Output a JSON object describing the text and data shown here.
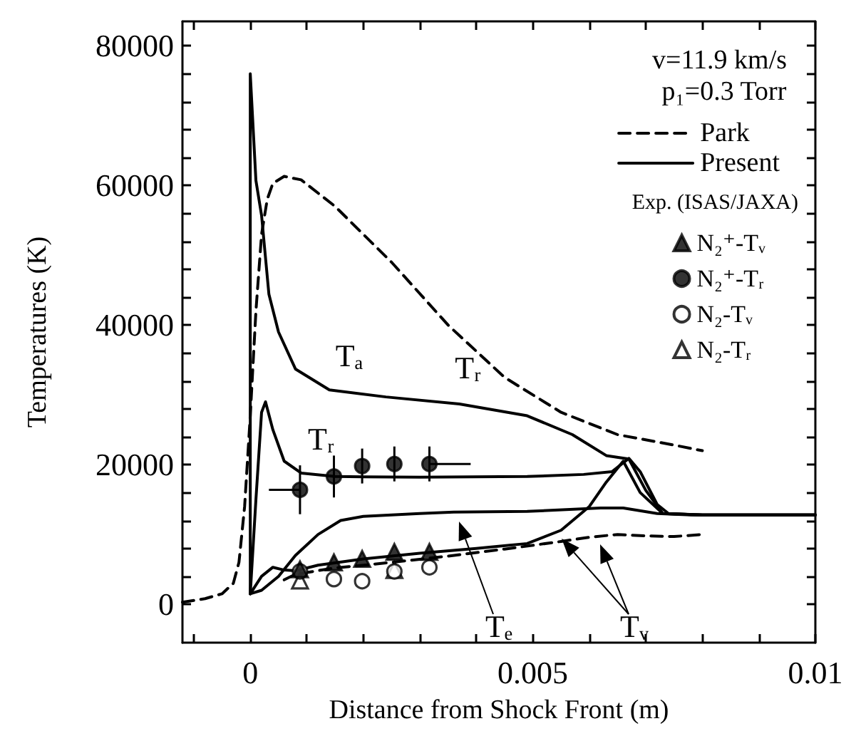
{
  "chart_data": {
    "type": "line",
    "xlabel": "Distance from Shock Front (m)",
    "ylabel": "Temperatures (K)",
    "legend_title": "Exp. (ISAS/JAXA)",
    "legend": "top right",
    "grid": false,
    "xlim": [
      -0.0012,
      0.01
    ],
    "ylim": [
      -5500,
      83500
    ],
    "xticks": [
      {
        "value": -0.001,
        "label": null
      },
      0,
      {
        "value": 0.001,
        "label": null
      },
      {
        "value": 0.002,
        "label": null
      },
      {
        "value": 0.003,
        "label": null
      },
      {
        "value": 0.004,
        "label": null
      },
      0.005,
      {
        "value": 0.006,
        "label": null
      },
      {
        "value": 0.007,
        "label": null
      },
      {
        "value": 0.008,
        "label": null
      },
      {
        "value": 0.009,
        "label": null
      },
      0.01
    ],
    "yticks": [
      0,
      {
        "value": 4000,
        "label": null
      },
      {
        "value": 8000,
        "label": null
      },
      {
        "value": 12000,
        "label": null
      },
      {
        "value": 16000,
        "label": null
      },
      20000,
      {
        "value": 24000,
        "label": null
      },
      {
        "value": 28000,
        "label": null
      },
      {
        "value": 32000,
        "label": null
      },
      {
        "value": 36000,
        "label": null
      },
      40000,
      {
        "value": 44000,
        "label": null
      },
      {
        "value": 48000,
        "label": null
      },
      {
        "value": 52000,
        "label": null
      },
      {
        "value": 56000,
        "label": null
      },
      60000,
      {
        "value": 64000,
        "label": null
      },
      {
        "value": 68000,
        "label": null
      },
      {
        "value": 72000,
        "label": null
      },
      {
        "value": 76000,
        "label": null
      },
      80000
    ],
    "series": [
      {
        "name": "Park",
        "color": "#000000",
        "line_style": "dashed",
        "marker": "none",
        "x": [
          -0.0012,
          -0.0008,
          -0.0005,
          -0.0003,
          -0.0002,
          -0.0001,
          0,
          0.0001,
          0.0002,
          0.0003,
          0.0004,
          0.0006,
          0.0009,
          0.0015,
          0.0025,
          0.0035,
          0.0045,
          0.0055,
          0.0065,
          0.0075,
          0.008
        ],
        "values": [
          300,
          800,
          1500,
          3000,
          6000,
          14000,
          27000,
          42000,
          53000,
          58000,
          60300,
          61300,
          60800,
          57000,
          49000,
          40000,
          32500,
          27500,
          24300,
          22800,
          22000
        ]
      },
      {
        "color": "#000000",
        "line_style": "dashed",
        "marker": "none",
        "x": [
          0.0006,
          0.0008,
          0.0015,
          0.0025,
          0.0035,
          0.0045,
          0.0055,
          0.006,
          0.0065,
          0.007,
          0.0075,
          0.008
        ],
        "values": [
          3500,
          4300,
          5200,
          6000,
          6900,
          7900,
          9000,
          9600,
          10000,
          9800,
          9700,
          10000
        ]
      },
      {
        "name": "Present",
        "color": "#000000",
        "line_style": "solid",
        "marker": "none",
        "x": [
          0,
          0,
          0.0001,
          0.0002,
          0.00033,
          0.0005,
          0.0008,
          0.0014,
          0.0024,
          0.0037,
          0.0049,
          0.0057,
          0.0063,
          0.0067,
          0.007,
          0.0073,
          0.008,
          0.01
        ],
        "values": [
          1500,
          76000,
          60700,
          55700,
          44400,
          39000,
          33700,
          30700,
          29700,
          28700,
          27000,
          24300,
          21300,
          20800,
          16300,
          13000,
          12800,
          12800
        ]
      },
      {
        "color": "#000000",
        "line_style": "solid",
        "marker": "none",
        "x": [
          0,
          0.0001,
          0.0002,
          0.00027,
          0.0004,
          0.0006,
          0.0009,
          0.0015,
          0.003,
          0.0049,
          0.0059,
          0.0064,
          0.0067,
          0.0069,
          0.0072,
          0.0074,
          0.008,
          0.01
        ],
        "values": [
          1500,
          15000,
          27500,
          29000,
          25000,
          20500,
          18800,
          18300,
          18200,
          18300,
          18600,
          19000,
          20900,
          19000,
          14300,
          13000,
          12800,
          12800
        ]
      },
      {
        "color": "#000000",
        "line_style": "solid",
        "marker": "none",
        "x": [
          0,
          0.0002,
          0.0005,
          0.0008,
          0.0012,
          0.0016,
          0.002,
          0.003,
          0.0036,
          0.0049,
          0.0062,
          0.0066,
          0.0072,
          0.0078,
          0.01
        ],
        "values": [
          1500,
          2000,
          4000,
          7000,
          10000,
          12000,
          12600,
          13000,
          13200,
          13300,
          13800,
          13800,
          13000,
          12800,
          12800
        ]
      },
      {
        "color": "#000000",
        "line_style": "solid",
        "marker": "none",
        "x": [
          0,
          0.0002,
          0.0004,
          0.0006,
          0.0008,
          0.0012,
          0.002,
          0.003,
          0.004,
          0.0049,
          0.0055,
          0.006,
          0.0063,
          0.0066,
          0.0069,
          0.0073,
          0.008,
          0.01
        ],
        "values": [
          1500,
          4000,
          5300,
          4900,
          4800,
          5600,
          6500,
          7300,
          8000,
          8700,
          10600,
          14000,
          17500,
          20500,
          16000,
          13000,
          12800,
          12800
        ]
      },
      {
        "name": "N₂⁺-Tᵥ",
        "type": "scatter",
        "color": "#000000",
        "marker": "triangle",
        "x": [
          0.00088,
          0.00148,
          0.00198,
          0.00255,
          0.00317
        ],
        "values": [
          5000,
          6000,
          6500,
          7500,
          7500
        ]
      },
      {
        "name": "N₂⁺-Tᵣ",
        "type": "scatter",
        "color": "#000000",
        "marker": "circle",
        "x": [
          0.00088,
          0.00148,
          0.00198,
          0.00255,
          0.00317
        ],
        "values": [
          16400,
          18300,
          19800,
          20100,
          20100
        ],
        "errors": [
          3500,
          3000,
          2500,
          2500,
          2500
        ],
        "xerrors": [
          [
            0.00033,
            0.00088
          ],
          null,
          null,
          null,
          [
            0.00317,
            0.0039
          ]
        ]
      },
      {
        "name": "N₂-Tᵥ",
        "type": "scatter",
        "color": "#ffffff",
        "marker": "circle",
        "x": [
          0.00088,
          0.00148,
          0.00198,
          0.00255,
          0.00317
        ],
        "values": [
          4700,
          3600,
          3300,
          4700,
          5300
        ]
      },
      {
        "name": "N₂-Tᵣ",
        "type": "scatter",
        "color": "#ffffff",
        "marker": "triangle",
        "x": [
          0.00088,
          0.00255
        ],
        "values": [
          3400,
          4900
        ]
      }
    ],
    "annotations": [
      "v=11.9 km/s",
      "p₁=0.3 Torr",
      {
        "text": "Tₐ",
        "x": 0.0014,
        "y": 30700
      },
      {
        "text": "Tᵣ",
        "x": 0.0009,
        "y": 18800
      },
      {
        "text": "Tᵣ",
        "x": 0.0035,
        "y": 40000
      },
      "Tₑ",
      "Tᵥ"
    ]
  }
}
